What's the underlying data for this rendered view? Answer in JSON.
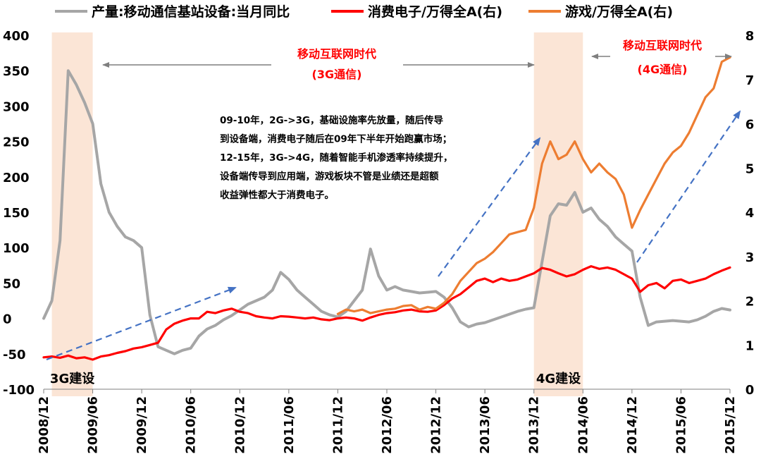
{
  "chart_data": {
    "type": "line",
    "x_range": [
      "2008/12",
      "2015/12"
    ],
    "x_ticks": [
      "2008/12",
      "2009/06",
      "2009/12",
      "2010/06",
      "2010/12",
      "2011/06",
      "2011/12",
      "2012/06",
      "2012/12",
      "2013/06",
      "2013/12",
      "2014/06",
      "2014/12",
      "2015/06",
      "2015/12"
    ],
    "y_left": {
      "range": [
        -100,
        400
      ],
      "ticks": [
        "-100",
        "-50",
        "0",
        "50",
        "100",
        "150",
        "200",
        "250",
        "300",
        "350",
        "400"
      ]
    },
    "y_right": {
      "range": [
        0,
        8
      ],
      "ticks": [
        "0",
        "1",
        "2",
        "3",
        "4",
        "5",
        "6",
        "7",
        "8"
      ]
    },
    "legend_placement": "top",
    "grid": false,
    "series": [
      {
        "name": "产量:移动通信基站设备:当月同比",
        "axis": "left",
        "color": "#a6a6a6",
        "points": [
          [
            "2008/12",
            0
          ],
          [
            "2009/01",
            25
          ],
          [
            "2009/02",
            110
          ],
          [
            "2009/03",
            350
          ],
          [
            "2009/04",
            330
          ],
          [
            "2009/05",
            305
          ],
          [
            "2009/06",
            275
          ],
          [
            "2009/07",
            190
          ],
          [
            "2009/08",
            150
          ],
          [
            "2009/09",
            130
          ],
          [
            "2009/10",
            115
          ],
          [
            "2009/11",
            110
          ],
          [
            "2009/12",
            100
          ],
          [
            "2010/01",
            5
          ],
          [
            "2010/02",
            -40
          ],
          [
            "2010/03",
            -45
          ],
          [
            "2010/04",
            -50
          ],
          [
            "2010/05",
            -45
          ],
          [
            "2010/06",
            -42
          ],
          [
            "2010/07",
            -25
          ],
          [
            "2010/08",
            -15
          ],
          [
            "2010/09",
            -10
          ],
          [
            "2010/10",
            -2
          ],
          [
            "2010/11",
            4
          ],
          [
            "2010/12",
            12
          ],
          [
            "2011/01",
            20
          ],
          [
            "2011/02",
            25
          ],
          [
            "2011/03",
            30
          ],
          [
            "2011/04",
            40
          ],
          [
            "2011/05",
            65
          ],
          [
            "2011/06",
            55
          ],
          [
            "2011/07",
            40
          ],
          [
            "2011/08",
            30
          ],
          [
            "2011/09",
            20
          ],
          [
            "2011/10",
            10
          ],
          [
            "2011/11",
            5
          ],
          [
            "2011/12",
            2
          ],
          [
            "2012/01",
            10
          ],
          [
            "2012/02",
            25
          ],
          [
            "2012/03",
            40
          ],
          [
            "2012/04",
            98
          ],
          [
            "2012/05",
            60
          ],
          [
            "2012/06",
            40
          ],
          [
            "2012/07",
            45
          ],
          [
            "2012/08",
            40
          ],
          [
            "2012/09",
            38
          ],
          [
            "2012/10",
            36
          ],
          [
            "2012/11",
            37
          ],
          [
            "2012/12",
            38
          ],
          [
            "2013/01",
            30
          ],
          [
            "2013/02",
            15
          ],
          [
            "2013/03",
            -5
          ],
          [
            "2013/04",
            -12
          ],
          [
            "2013/05",
            -8
          ],
          [
            "2013/06",
            -6
          ],
          [
            "2013/07",
            -2
          ],
          [
            "2013/08",
            2
          ],
          [
            "2013/09",
            6
          ],
          [
            "2013/10",
            10
          ],
          [
            "2013/11",
            13
          ],
          [
            "2013/12",
            15
          ],
          [
            "2014/01",
            80
          ],
          [
            "2014/02",
            145
          ],
          [
            "2014/03",
            162
          ],
          [
            "2014/04",
            160
          ],
          [
            "2014/05",
            178
          ],
          [
            "2014/06",
            150
          ],
          [
            "2014/07",
            156
          ],
          [
            "2014/08",
            140
          ],
          [
            "2014/09",
            130
          ],
          [
            "2014/10",
            115
          ],
          [
            "2014/11",
            105
          ],
          [
            "2014/12",
            95
          ],
          [
            "2015/01",
            30
          ],
          [
            "2015/02",
            -10
          ],
          [
            "2015/03",
            -5
          ],
          [
            "2015/04",
            -4
          ],
          [
            "2015/05",
            -3
          ],
          [
            "2015/06",
            -4
          ],
          [
            "2015/07",
            -5
          ],
          [
            "2015/08",
            -2
          ],
          [
            "2015/09",
            3
          ],
          [
            "2015/10",
            10
          ],
          [
            "2015/11",
            14
          ],
          [
            "2015/12",
            12
          ]
        ]
      },
      {
        "name": "消费电子/万得全A(右)",
        "axis": "right",
        "color": "#ff0000",
        "points": [
          [
            "2008/12",
            0.72
          ],
          [
            "2009/01",
            0.74
          ],
          [
            "2009/02",
            0.71
          ],
          [
            "2009/03",
            0.76
          ],
          [
            "2009/04",
            0.7
          ],
          [
            "2009/05",
            0.72
          ],
          [
            "2009/06",
            0.67
          ],
          [
            "2009/07",
            0.74
          ],
          [
            "2009/08",
            0.77
          ],
          [
            "2009/09",
            0.82
          ],
          [
            "2009/10",
            0.86
          ],
          [
            "2009/11",
            0.92
          ],
          [
            "2009/12",
            0.95
          ],
          [
            "2010/01",
            1.0
          ],
          [
            "2010/02",
            1.05
          ],
          [
            "2010/03",
            1.35
          ],
          [
            "2010/04",
            1.48
          ],
          [
            "2010/05",
            1.55
          ],
          [
            "2010/06",
            1.6
          ],
          [
            "2010/07",
            1.6
          ],
          [
            "2010/08",
            1.75
          ],
          [
            "2010/09",
            1.72
          ],
          [
            "2010/10",
            1.78
          ],
          [
            "2010/11",
            1.82
          ],
          [
            "2010/12",
            1.75
          ],
          [
            "2011/01",
            1.72
          ],
          [
            "2011/02",
            1.65
          ],
          [
            "2011/03",
            1.62
          ],
          [
            "2011/04",
            1.6
          ],
          [
            "2011/05",
            1.65
          ],
          [
            "2011/06",
            1.64
          ],
          [
            "2011/07",
            1.62
          ],
          [
            "2011/08",
            1.6
          ],
          [
            "2011/09",
            1.62
          ],
          [
            "2011/10",
            1.58
          ],
          [
            "2011/11",
            1.56
          ],
          [
            "2011/12",
            1.6
          ],
          [
            "2012/01",
            1.62
          ],
          [
            "2012/02",
            1.6
          ],
          [
            "2012/03",
            1.55
          ],
          [
            "2012/04",
            1.62
          ],
          [
            "2012/05",
            1.68
          ],
          [
            "2012/06",
            1.72
          ],
          [
            "2012/07",
            1.74
          ],
          [
            "2012/08",
            1.78
          ],
          [
            "2012/09",
            1.8
          ],
          [
            "2012/10",
            1.76
          ],
          [
            "2012/11",
            1.75
          ],
          [
            "2012/12",
            1.78
          ],
          [
            "2013/01",
            1.9
          ],
          [
            "2013/02",
            2.05
          ],
          [
            "2013/03",
            2.15
          ],
          [
            "2013/04",
            2.3
          ],
          [
            "2013/05",
            2.45
          ],
          [
            "2013/06",
            2.5
          ],
          [
            "2013/07",
            2.42
          ],
          [
            "2013/08",
            2.5
          ],
          [
            "2013/09",
            2.45
          ],
          [
            "2013/10",
            2.48
          ],
          [
            "2013/11",
            2.55
          ],
          [
            "2013/12",
            2.62
          ],
          [
            "2014/01",
            2.74
          ],
          [
            "2014/02",
            2.7
          ],
          [
            "2014/03",
            2.62
          ],
          [
            "2014/04",
            2.55
          ],
          [
            "2014/05",
            2.6
          ],
          [
            "2014/06",
            2.7
          ],
          [
            "2014/07",
            2.78
          ],
          [
            "2014/08",
            2.72
          ],
          [
            "2014/09",
            2.75
          ],
          [
            "2014/10",
            2.7
          ],
          [
            "2014/11",
            2.6
          ],
          [
            "2014/12",
            2.5
          ],
          [
            "2015/01",
            2.2
          ],
          [
            "2015/02",
            2.35
          ],
          [
            "2015/03",
            2.4
          ],
          [
            "2015/04",
            2.28
          ],
          [
            "2015/05",
            2.45
          ],
          [
            "2015/06",
            2.48
          ],
          [
            "2015/07",
            2.4
          ],
          [
            "2015/08",
            2.45
          ],
          [
            "2015/09",
            2.5
          ],
          [
            "2015/10",
            2.6
          ],
          [
            "2015/11",
            2.68
          ],
          [
            "2015/12",
            2.75
          ]
        ]
      },
      {
        "name": "游戏/万得全A(右)",
        "axis": "right",
        "color": "#ed7d31",
        "points": [
          [
            "2011/12",
            1.7
          ],
          [
            "2012/01",
            1.8
          ],
          [
            "2012/02",
            1.76
          ],
          [
            "2012/03",
            1.8
          ],
          [
            "2012/04",
            1.72
          ],
          [
            "2012/05",
            1.76
          ],
          [
            "2012/06",
            1.8
          ],
          [
            "2012/07",
            1.82
          ],
          [
            "2012/08",
            1.88
          ],
          [
            "2012/09",
            1.9
          ],
          [
            "2012/10",
            1.8
          ],
          [
            "2012/11",
            1.86
          ],
          [
            "2012/12",
            1.82
          ],
          [
            "2013/01",
            1.95
          ],
          [
            "2013/02",
            2.15
          ],
          [
            "2013/03",
            2.45
          ],
          [
            "2013/04",
            2.65
          ],
          [
            "2013/05",
            2.85
          ],
          [
            "2013/06",
            2.95
          ],
          [
            "2013/07",
            3.1
          ],
          [
            "2013/08",
            3.3
          ],
          [
            "2013/09",
            3.5
          ],
          [
            "2013/10",
            3.55
          ],
          [
            "2013/11",
            3.6
          ],
          [
            "2013/12",
            4.1
          ],
          [
            "2014/01",
            5.1
          ],
          [
            "2014/02",
            5.6
          ],
          [
            "2014/03",
            5.2
          ],
          [
            "2014/04",
            5.3
          ],
          [
            "2014/05",
            5.6
          ],
          [
            "2014/06",
            5.2
          ],
          [
            "2014/07",
            4.9
          ],
          [
            "2014/08",
            5.1
          ],
          [
            "2014/09",
            4.9
          ],
          [
            "2014/10",
            4.75
          ],
          [
            "2014/11",
            4.4
          ],
          [
            "2014/12",
            3.65
          ],
          [
            "2015/01",
            4.05
          ],
          [
            "2015/02",
            4.4
          ],
          [
            "2015/03",
            4.75
          ],
          [
            "2015/04",
            5.1
          ],
          [
            "2015/05",
            5.35
          ],
          [
            "2015/06",
            5.5
          ],
          [
            "2015/07",
            5.8
          ],
          [
            "2015/08",
            6.2
          ],
          [
            "2015/09",
            6.6
          ],
          [
            "2015/10",
            6.8
          ],
          [
            "2015/11",
            7.4
          ],
          [
            "2015/12",
            7.5
          ]
        ]
      }
    ],
    "shaded_periods": [
      {
        "label": "3G建设",
        "start": "2009/01",
        "end": "2009/06"
      },
      {
        "label": "4G建设",
        "start": "2013/12",
        "end": "2014/06"
      }
    ],
    "annotations": {
      "era_3g": [
        "移动互联网时代",
        "(3G通信)"
      ],
      "era_4g": [
        "移动互联网时代",
        "(4G通信)"
      ],
      "note": [
        "09-10年，2G->3G，基础设施率先放量，随后传导",
        "到设备端，消费电子随后在09年下半年开始跑赢市场；",
        "12-15年，3G->4G，随着智能手机渗透率持续提升，",
        "设备端传导到应用端，游戏板块不管是业绩还是超额",
        "收益弹性都大于消费电子。"
      ]
    }
  }
}
